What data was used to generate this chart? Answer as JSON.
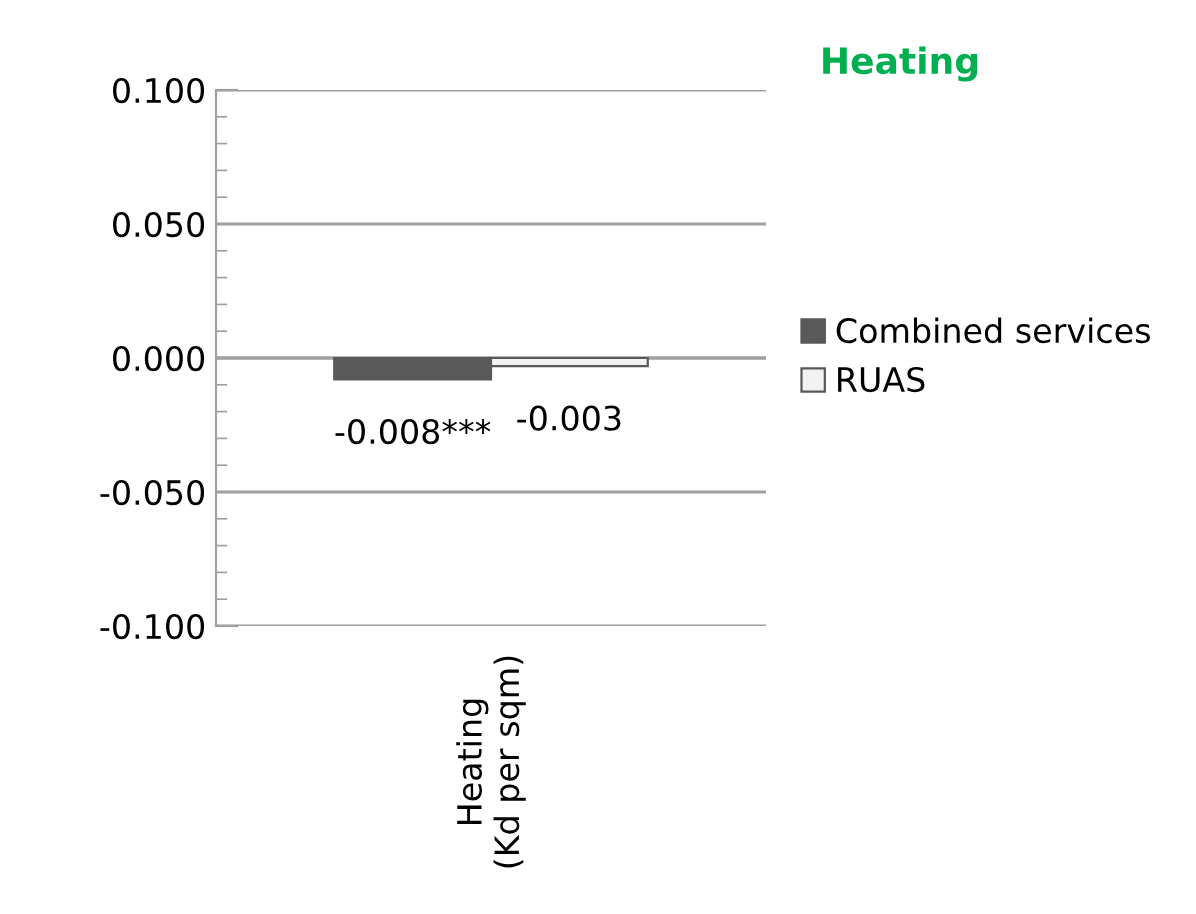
{
  "chart_data": {
    "type": "bar",
    "title": "Heating",
    "categories": [
      "Heating\n(Kd per sqm)"
    ],
    "series": [
      {
        "name": "Combined services",
        "color": "#595959",
        "values": [
          -0.008
        ],
        "value_labels": [
          "-0.008***"
        ]
      },
      {
        "name": "RUAS",
        "color": "#f2f2f2",
        "values": [
          -0.003
        ],
        "value_labels": [
          "-0.003"
        ]
      }
    ],
    "ylim": [
      -0.1,
      0.1
    ],
    "yticks": [
      {
        "value": -0.1,
        "label": "-0.100"
      },
      {
        "value": -0.05,
        "label": "-0.050"
      },
      {
        "value": 0,
        "label": "0.000"
      },
      {
        "value": 0.05,
        "label": "0.050"
      },
      {
        "value": 0.1,
        "label": "0.100"
      }
    ],
    "grid": "y",
    "legend": "right"
  }
}
